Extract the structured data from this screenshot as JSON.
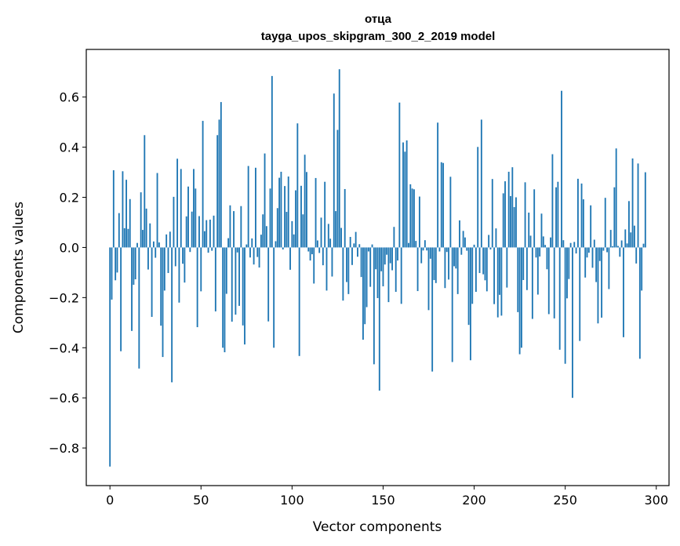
{
  "chart_data": {
    "type": "bar",
    "title": "отца",
    "subtitle": "tayga_upos_skipgram_300_2_2019 model",
    "xlabel": "Vector components",
    "ylabel": "Components values",
    "xlim": [
      -13,
      307
    ],
    "ylim": [
      -0.95,
      0.79
    ],
    "xticks": [
      0,
      50,
      100,
      150,
      200,
      250,
      300
    ],
    "xtick_labels": [
      "0",
      "50",
      "100",
      "150",
      "200",
      "250",
      "300"
    ],
    "yticks": [
      -0.8,
      -0.6,
      -0.4,
      -0.2,
      0.0,
      0.2,
      0.4,
      0.6
    ],
    "ytick_labels": [
      "−0.8",
      "−0.6",
      "−0.4",
      "−0.2",
      "0.0",
      "0.2",
      "0.4",
      "0.6"
    ],
    "color": "#1f77b4",
    "values": [
      -0.874,
      -0.208,
      0.308,
      -0.131,
      -0.1,
      0.137,
      -0.414,
      0.304,
      0.077,
      0.27,
      0.074,
      0.193,
      -0.333,
      -0.149,
      -0.127,
      0.018,
      -0.483,
      0.22,
      0.07,
      0.448,
      0.155,
      -0.088,
      0.096,
      -0.277,
      0.024,
      -0.041,
      0.297,
      0.02,
      -0.312,
      -0.437,
      -0.172,
      0.052,
      -0.102,
      0.063,
      -0.538,
      0.202,
      -0.075,
      0.354,
      -0.22,
      0.313,
      -0.065,
      -0.14,
      0.124,
      0.243,
      -0.018,
      0.143,
      0.313,
      0.235,
      -0.318,
      0.125,
      -0.175,
      0.505,
      0.065,
      0.109,
      -0.021,
      0.111,
      -0.013,
      0.127,
      -0.255,
      0.448,
      0.51,
      0.58,
      -0.4,
      -0.418,
      -0.185,
      0.037,
      0.168,
      -0.296,
      0.145,
      -0.268,
      -0.02,
      -0.233,
      0.165,
      -0.311,
      -0.387,
      0.012,
      0.325,
      -0.04,
      0.036,
      -0.068,
      0.318,
      -0.038,
      -0.08,
      0.051,
      0.132,
      0.375,
      0.085,
      -0.295,
      0.235,
      0.684,
      -0.4,
      0.025,
      0.157,
      0.278,
      0.302,
      -0.008,
      0.245,
      0.142,
      0.283,
      -0.089,
      0.105,
      0.052,
      0.228,
      0.495,
      -0.433,
      0.246,
      0.132,
      0.37,
      0.301,
      -0.016,
      -0.052,
      -0.027,
      -0.144,
      0.277,
      0.028,
      -0.022,
      0.119,
      -0.071,
      0.262,
      -0.172,
      0.094,
      0.035,
      -0.116,
      0.614,
      0.145,
      0.469,
      0.711,
      0.078,
      -0.212,
      0.233,
      -0.138,
      -0.186,
      0.042,
      -0.07,
      0.016,
      0.062,
      -0.037,
      0.013,
      -0.118,
      -0.368,
      -0.306,
      -0.238,
      -0.016,
      -0.157,
      0.012,
      -0.466,
      -0.087,
      -0.202,
      -0.571,
      -0.095,
      -0.155,
      -0.068,
      -0.029,
      -0.218,
      -0.063,
      -0.091,
      0.082,
      -0.177,
      -0.052,
      0.578,
      -0.225,
      0.419,
      0.382,
      0.427,
      0.018,
      0.252,
      0.235,
      0.232,
      0.026,
      -0.174,
      0.203,
      -0.063,
      -0.012,
      0.029,
      -0.012,
      -0.25,
      -0.045,
      -0.495,
      -0.13,
      -0.142,
      0.498,
      -0.016,
      0.34,
      0.337,
      -0.162,
      -0.018,
      -0.128,
      0.282,
      -0.457,
      -0.075,
      -0.084,
      -0.186,
      0.108,
      -0.029,
      0.066,
      0.04,
      -0.013,
      -0.309,
      -0.45,
      -0.225,
      0.011,
      -0.177,
      0.401,
      -0.102,
      0.51,
      -0.107,
      -0.131,
      -0.175,
      0.05,
      -0.008,
      0.273,
      -0.226,
      0.076,
      -0.279,
      -0.189,
      -0.272,
      0.216,
      0.264,
      -0.16,
      0.302,
      0.205,
      0.32,
      0.161,
      0.2,
      -0.258,
      -0.426,
      -0.4,
      -0.13,
      0.26,
      -0.17,
      0.139,
      0.047,
      -0.285,
      0.232,
      -0.04,
      -0.188,
      -0.036,
      0.135,
      0.044,
      0.01,
      -0.087,
      -0.266,
      0.04,
      0.372,
      -0.283,
      0.24,
      0.262,
      -0.408,
      0.625,
      0.029,
      -0.464,
      -0.203,
      -0.126,
      0.018,
      -0.6,
      0.022,
      -0.024,
      0.274,
      -0.373,
      0.255,
      0.192,
      -0.12,
      -0.04,
      -0.021,
      0.168,
      -0.081,
      0.031,
      -0.138,
      -0.303,
      -0.054,
      -0.28,
      -0.013,
      0.198,
      -0.019,
      -0.166,
      0.07,
      0.005,
      0.24,
      0.395,
      0.006,
      -0.037,
      0.028,
      -0.358,
      0.072,
      0.016,
      0.185,
      0.06,
      0.355,
      0.087,
      -0.064,
      0.335,
      -0.444,
      -0.172,
      0.015,
      0.3
    ]
  }
}
